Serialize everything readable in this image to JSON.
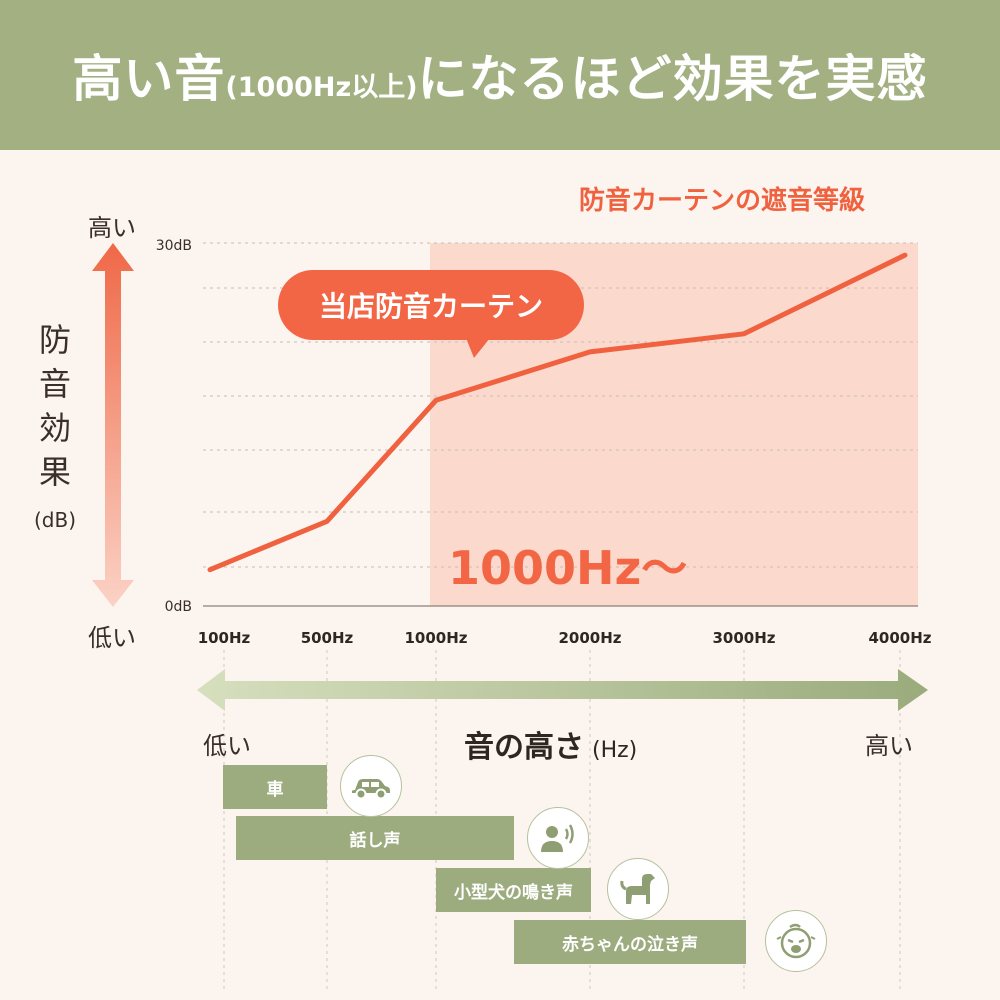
{
  "header": {
    "title_main": "高い音",
    "title_sub": "(1000Hz以上)",
    "title_end": "になるほど効果を実感"
  },
  "legend_tag": "防音カーテンの遮音等級",
  "bubble_label": "当店防音カーテン",
  "highlight_label": "1000Hz〜",
  "y_axis": {
    "high_label": "高い",
    "low_label": "低い",
    "title": "防音効果",
    "unit": "(dB)"
  },
  "x_axis": {
    "low_label": "低い",
    "high_label": "高い",
    "title": "音の高さ",
    "unit": "(Hz)"
  },
  "chart_data": {
    "type": "line",
    "categories": [
      "100Hz",
      "500Hz",
      "1000Hz",
      "2000Hz",
      "3000Hz",
      "4000Hz"
    ],
    "ytick_labels": [
      "0dB",
      "30dB"
    ],
    "ylim": [
      0,
      30
    ],
    "grid": true,
    "highlight_range": [
      "1000Hz",
      "4000Hz"
    ],
    "series": [
      {
        "name": "当店防音カーテン",
        "values": [
          3,
          7,
          17,
          21,
          22.5,
          29
        ]
      }
    ],
    "colors": {
      "line": "#f0623f",
      "highlight": "#fbdacd",
      "grid": "#c9bcb4"
    }
  },
  "sound_sources": [
    {
      "label": "車",
      "range": [
        "100Hz",
        "500Hz"
      ],
      "icon": "car-icon"
    },
    {
      "label": "話し声",
      "range": [
        "150Hz",
        "1700Hz"
      ],
      "icon": "speaking-person-icon"
    },
    {
      "label": "小型犬の鳴き声",
      "range": [
        "1000Hz",
        "2000Hz"
      ],
      "icon": "dog-icon"
    },
    {
      "label": "赤ちゃんの泣き声",
      "range": [
        "1700Hz",
        "3000Hz"
      ],
      "icon": "crying-baby-icon"
    }
  ]
}
